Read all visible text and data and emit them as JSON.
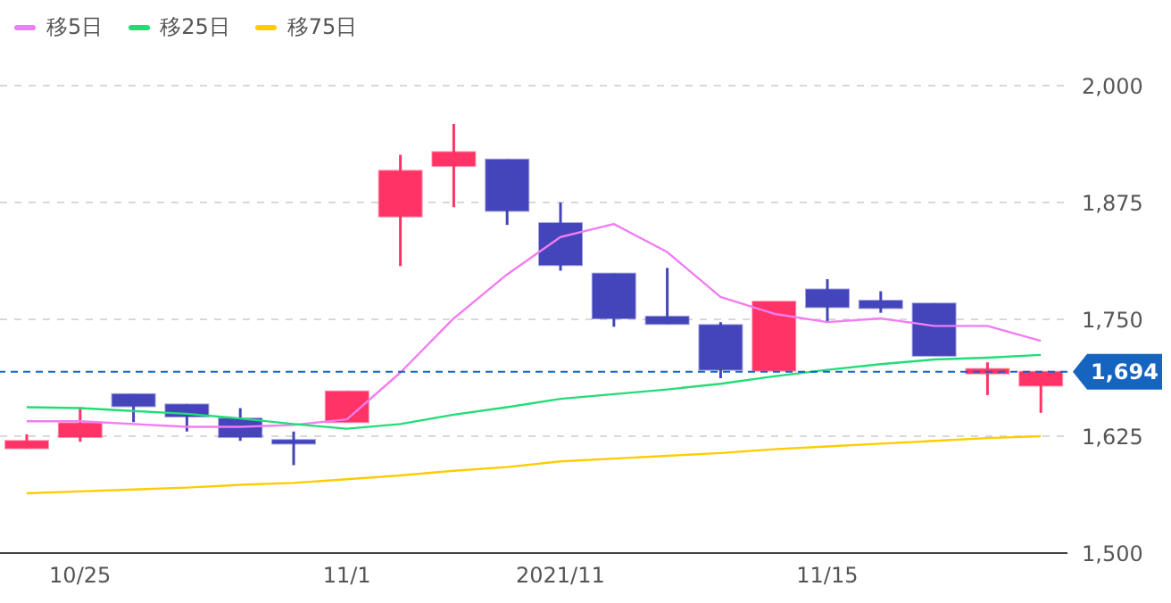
{
  "chart_data": {
    "type": "candlestick",
    "categories": [
      null,
      "10/25",
      null,
      null,
      null,
      null,
      "11/1",
      null,
      null,
      null,
      "2021/11",
      null,
      null,
      null,
      null,
      "11/15",
      null,
      null,
      null,
      null
    ],
    "ohlc": [
      [
        1612,
        1627,
        1612,
        1620
      ],
      [
        1624,
        1656,
        1619,
        1639
      ],
      [
        1670,
        1670,
        1640,
        1657
      ],
      [
        1659,
        1659,
        1630,
        1646
      ],
      [
        1644,
        1655,
        1620,
        1624
      ],
      [
        1621,
        1630,
        1594,
        1617
      ],
      [
        1640,
        1673,
        1640,
        1673
      ],
      [
        1860,
        1926,
        1807,
        1909
      ],
      [
        1914,
        1959,
        1870,
        1929
      ],
      [
        1921,
        1921,
        1851,
        1866
      ],
      [
        1853,
        1875,
        1802,
        1808
      ],
      [
        1799,
        1799,
        1742,
        1751
      ],
      [
        1753,
        1805,
        1745,
        1745
      ],
      [
        1744,
        1747,
        1687,
        1696
      ],
      [
        1695,
        1769,
        1695,
        1769
      ],
      [
        1782,
        1793,
        1747,
        1763
      ],
      [
        1770,
        1780,
        1757,
        1762
      ],
      [
        1767,
        1767,
        1711,
        1711
      ],
      [
        1692,
        1704,
        1669,
        1697
      ],
      [
        1679,
        1694,
        1650,
        1694
      ]
    ],
    "colors": [
      "#ff3366",
      "#ff3366",
      "#4444bb",
      "#4444bb",
      "#4444bb",
      "#4444bb",
      "#ff3366",
      "#ff3366",
      "#ff3366",
      "#4444bb",
      "#4444bb",
      "#4444bb",
      "#4444bb",
      "#4444bb",
      "#ff3366",
      "#4444bb",
      "#4444bb",
      "#4444bb",
      "#ff3366",
      "#ff3366"
    ],
    "series": [
      {
        "type": "line",
        "name": "移5日",
        "color": "#f27cf2",
        "values": [
          1641,
          1641,
          1638,
          1635,
          1635,
          1637,
          1643,
          1693,
          1751,
          1798,
          1838,
          1852,
          1822,
          1774,
          1756,
          1747,
          1751,
          1743,
          1743,
          1727
        ]
      },
      {
        "type": "line",
        "name": "移25日",
        "color": "#22dd77",
        "values": [
          1656,
          1655,
          1652,
          1649,
          1644,
          1638,
          1633,
          1638,
          1648,
          1656,
          1665,
          1670,
          1675,
          1681,
          1689,
          1696,
          1702,
          1707,
          1709,
          1712
        ]
      },
      {
        "type": "line",
        "name": "移75日",
        "color": "#ffcc00",
        "values": [
          1564,
          1566,
          1568,
          1570,
          1573,
          1575,
          1579,
          1583,
          1588,
          1592,
          1598,
          1601,
          1604,
          1607,
          1611,
          1614,
          1617,
          1620,
          1623,
          1625
        ]
      }
    ],
    "ylim": [
      1500,
      2000
    ],
    "yticks": [
      {
        "value": 1500,
        "label": "1,500"
      },
      {
        "value": 1625,
        "label": "1,625"
      },
      {
        "value": 1750,
        "label": "1,750"
      },
      {
        "value": 1875,
        "label": "1,875"
      },
      {
        "value": 2000,
        "label": "2,000"
      }
    ],
    "ref_lines": [
      {
        "axis": "y",
        "value": 1694,
        "label": "1,694",
        "color": "#1565c0",
        "line_style": "dashed"
      }
    ],
    "grid": "y",
    "legend": "top left",
    "marker": "none",
    "line_style": "solid"
  }
}
